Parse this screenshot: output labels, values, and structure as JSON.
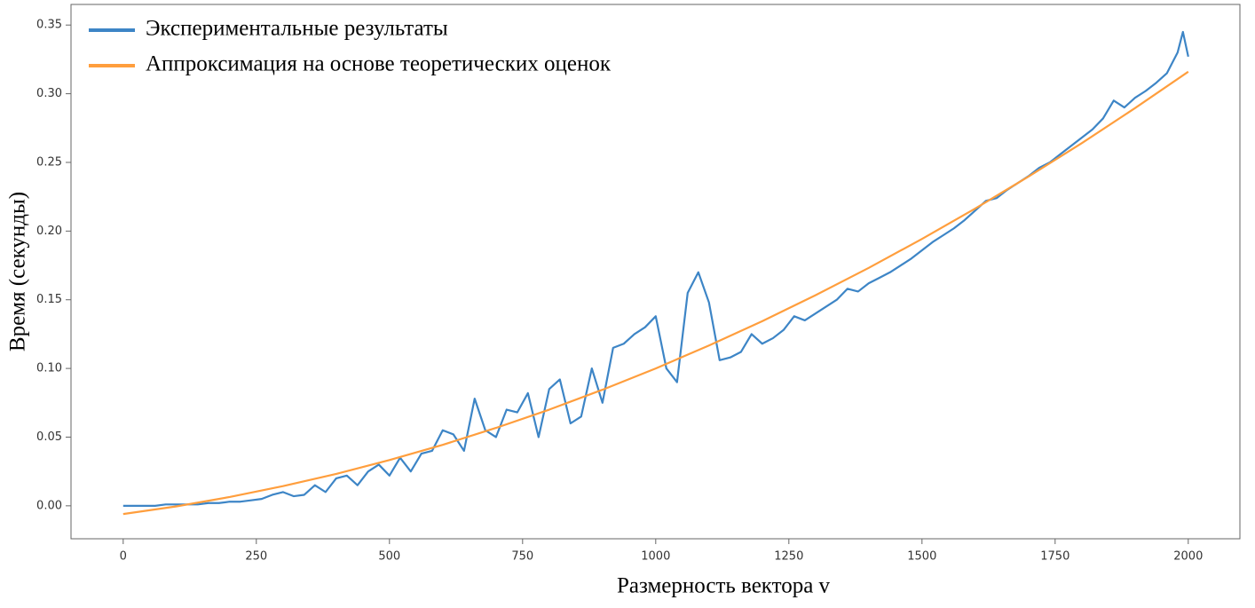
{
  "chart_data": {
    "type": "line",
    "xlabel": "Размерность вектора v",
    "ylabel": "Время (секунды)",
    "xlim": [
      -98,
      2097
    ],
    "ylim": [
      -0.024,
      0.365
    ],
    "xticks": [
      0,
      250,
      500,
      750,
      1000,
      1250,
      1500,
      1750,
      2000
    ],
    "yticks": [
      {
        "value": 0,
        "label": "0.00"
      },
      0.05,
      {
        "value": 0.1,
        "label": "0.10"
      },
      0.15,
      {
        "value": 0.2,
        "label": "0.20"
      },
      0.25,
      {
        "value": 0.3,
        "label": "0.30"
      },
      0.35
    ],
    "grid": false,
    "legend": "upper left",
    "series": [
      {
        "name": "Экспериментальные результаты",
        "color": "#3d85c6",
        "x": [
          0,
          20,
          40,
          60,
          80,
          100,
          120,
          140,
          160,
          180,
          200,
          220,
          240,
          260,
          280,
          300,
          320,
          340,
          360,
          380,
          400,
          420,
          440,
          460,
          480,
          500,
          520,
          540,
          560,
          580,
          600,
          620,
          640,
          660,
          680,
          700,
          720,
          740,
          760,
          780,
          800,
          820,
          840,
          860,
          880,
          900,
          920,
          940,
          960,
          980,
          1000,
          1020,
          1040,
          1060,
          1080,
          1100,
          1120,
          1140,
          1160,
          1180,
          1200,
          1220,
          1240,
          1260,
          1280,
          1300,
          1320,
          1340,
          1360,
          1380,
          1400,
          1420,
          1440,
          1460,
          1480,
          1500,
          1520,
          1540,
          1560,
          1580,
          1600,
          1620,
          1640,
          1660,
          1680,
          1700,
          1720,
          1740,
          1760,
          1780,
          1800,
          1820,
          1840,
          1860,
          1880,
          1900,
          1920,
          1940,
          1960,
          1980,
          1990,
          2000
        ],
        "values": [
          0,
          0,
          0,
          0,
          0.001,
          0.001,
          0.001,
          0.001,
          0.002,
          0.002,
          0.003,
          0.003,
          0.004,
          0.005,
          0.008,
          0.01,
          0.007,
          0.008,
          0.015,
          0.01,
          0.02,
          0.022,
          0.015,
          0.025,
          0.03,
          0.022,
          0.035,
          0.025,
          0.038,
          0.04,
          0.055,
          0.052,
          0.04,
          0.078,
          0.055,
          0.05,
          0.07,
          0.068,
          0.082,
          0.05,
          0.085,
          0.092,
          0.06,
          0.065,
          0.1,
          0.075,
          0.115,
          0.118,
          0.125,
          0.13,
          0.138,
          0.1,
          0.09,
          0.155,
          0.17,
          0.148,
          0.106,
          0.108,
          0.112,
          0.125,
          0.118,
          0.122,
          0.128,
          0.138,
          0.135,
          0.14,
          0.145,
          0.15,
          0.158,
          0.156,
          0.162,
          0.166,
          0.17,
          0.175,
          0.18,
          0.186,
          0.192,
          0.197,
          0.202,
          0.208,
          0.215,
          0.222,
          0.224,
          0.23,
          0.235,
          0.24,
          0.246,
          0.25,
          0.256,
          0.262,
          0.268,
          0.274,
          0.282,
          0.295,
          0.29,
          0.297,
          0.302,
          0.308,
          0.315,
          0.33,
          0.345,
          0.327
        ]
      },
      {
        "name": "Аппроксимация на основе теоретических оценок",
        "color": "#ff9e3d",
        "x": [
          0,
          100,
          200,
          300,
          400,
          500,
          600,
          700,
          800,
          900,
          1000,
          1100,
          1200,
          1300,
          1400,
          1500,
          1600,
          1700,
          1800,
          1900,
          2000
        ],
        "values": [
          -0.006,
          -0.0004,
          0.0064,
          0.0143,
          0.0232,
          0.0333,
          0.0444,
          0.0567,
          0.07,
          0.0845,
          0.1,
          0.1167,
          0.1344,
          0.1533,
          0.1732,
          0.1943,
          0.2164,
          0.2397,
          0.264,
          0.2895,
          0.316
        ]
      }
    ]
  }
}
